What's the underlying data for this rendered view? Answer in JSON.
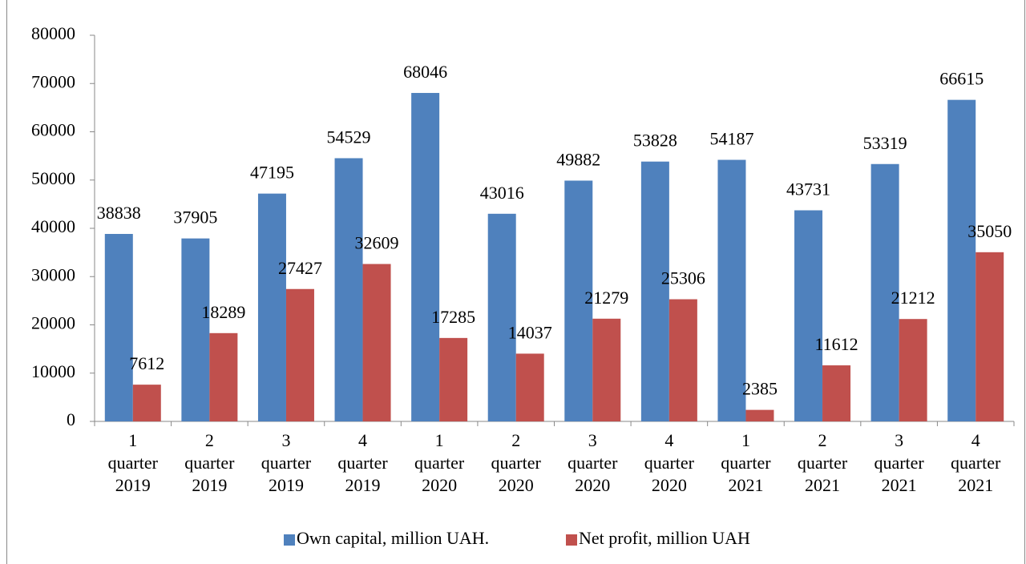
{
  "chart_data": {
    "type": "bar",
    "categories": [
      "1 quarter 2019",
      "2 quarter 2019",
      "3 quarter 2019",
      "4 quarter 2019",
      "1 quarter 2020",
      "2 quarter 2020",
      "3 quarter 2020",
      "4 quarter 2020",
      "1 quarter 2021",
      "2 quarter 2021",
      "3 quarter 2021",
      "4 quarter 2021"
    ],
    "series": [
      {
        "name": "Own capital, million UAH.",
        "color": "#4f81bd",
        "values": [
          38838,
          37905,
          47195,
          54529,
          68046,
          43016,
          49882,
          53828,
          54187,
          43731,
          53319,
          66615
        ]
      },
      {
        "name": "Net profit, million UAH",
        "color": "#c0504d",
        "values": [
          7612,
          18289,
          27427,
          32609,
          17285,
          14037,
          21279,
          25306,
          2385,
          11612,
          21212,
          35050
        ]
      }
    ],
    "ylim": [
      0,
      80000
    ],
    "yticks": [
      0,
      10000,
      20000,
      30000,
      40000,
      50000,
      60000,
      70000,
      80000
    ],
    "legend": "bottom"
  }
}
